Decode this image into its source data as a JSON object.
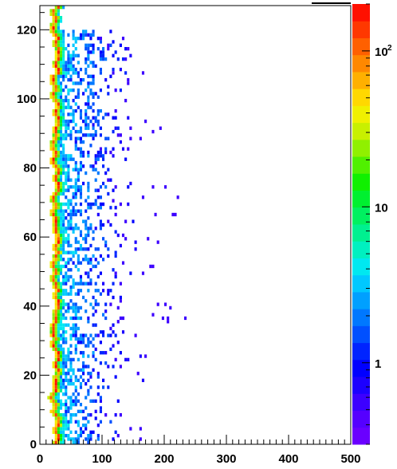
{
  "chart_data": {
    "type": "heatmap",
    "title": "",
    "xlabel": "",
    "ylabel": "",
    "xlim": [
      0,
      500
    ],
    "ylim": [
      0,
      127
    ],
    "x_ticks": [
      "0",
      "100",
      "200",
      "300",
      "400",
      "500"
    ],
    "y_ticks": [
      "0",
      "20",
      "40",
      "60",
      "80",
      "100",
      "120"
    ],
    "z_scale": "log",
    "zlim": [
      0.3,
      200
    ],
    "z_ticks": [
      {
        "value": 1,
        "base": "1",
        "exp": ""
      },
      {
        "value": 10,
        "base": "10",
        "exp": ""
      },
      {
        "value": 100,
        "base": "10",
        "exp": "2"
      }
    ],
    "bin_width_x": 4,
    "bin_height_y": 1,
    "palette": [
      "#6a00ff",
      "#5500ff",
      "#3c00ff",
      "#1c00ff",
      "#0000ff",
      "#0024ff",
      "#0050ff",
      "#0078ff",
      "#00a0ff",
      "#00c8ff",
      "#00e8f0",
      "#00f0c0",
      "#00f090",
      "#00f060",
      "#00f030",
      "#10f000",
      "#50f000",
      "#90f000",
      "#c8f000",
      "#f0f000",
      "#ffd800",
      "#ffb000",
      "#ff8800",
      "#ff6000",
      "#ff3800",
      "#ff1000"
    ],
    "ridge": {
      "description_values": "per-row x of ridge center (data units) repeats with wobble",
      "center_x_base": 24,
      "peak_counts": 150
    },
    "scatter_extent_x": 220,
    "grid": false,
    "legend": "colorbar-right"
  }
}
